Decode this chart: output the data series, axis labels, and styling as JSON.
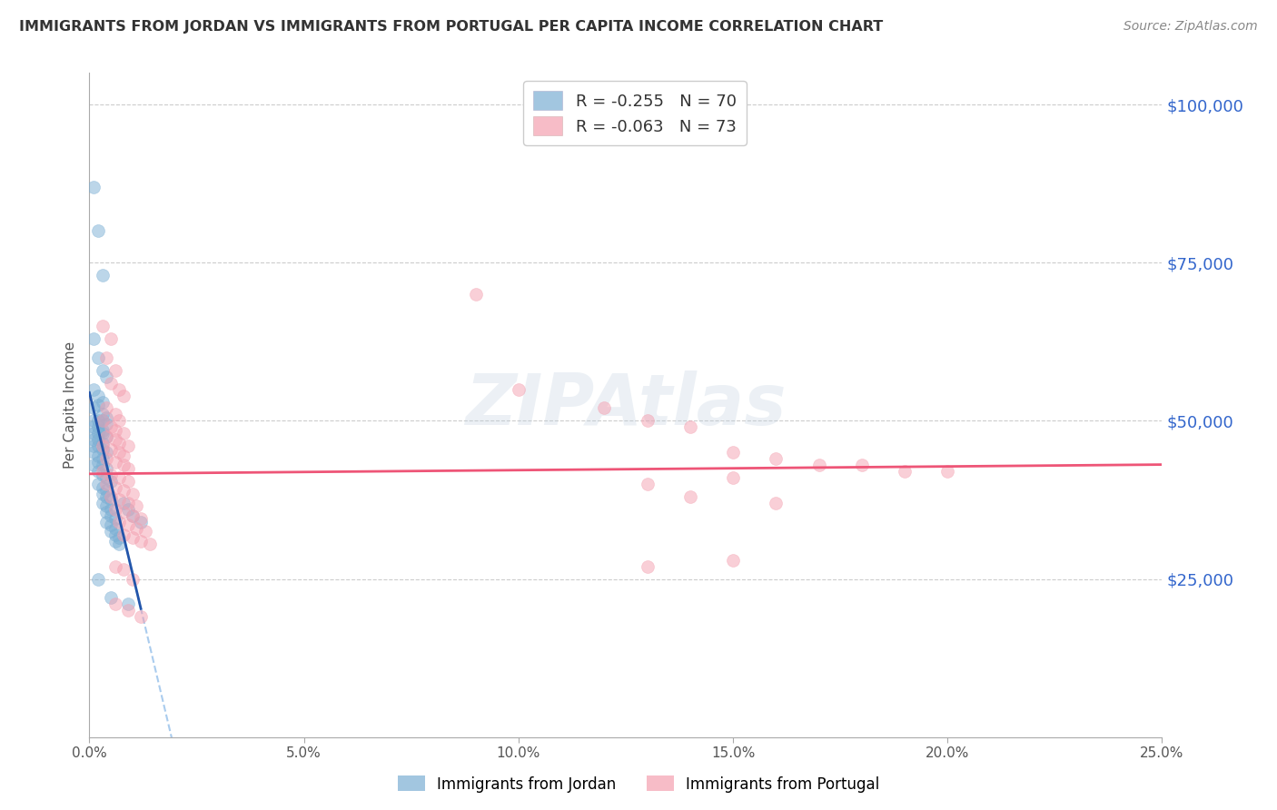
{
  "title": "IMMIGRANTS FROM JORDAN VS IMMIGRANTS FROM PORTUGAL PER CAPITA INCOME CORRELATION CHART",
  "source": "Source: ZipAtlas.com",
  "ylabel": "Per Capita Income",
  "x_min": 0.0,
  "x_max": 0.25,
  "y_min": 0,
  "y_max": 105000,
  "y_ticks": [
    25000,
    50000,
    75000,
    100000
  ],
  "y_tick_labels": [
    "$25,000",
    "$50,000",
    "$75,000",
    "$100,000"
  ],
  "x_ticks": [
    0.0,
    0.05,
    0.1,
    0.15,
    0.2,
    0.25
  ],
  "x_tick_labels": [
    "0.0%",
    "5.0%",
    "10.0%",
    "15.0%",
    "20.0%",
    "25.0%"
  ],
  "legend_jordan": "R = -0.255   N = 70",
  "legend_portugal": "R = -0.063   N = 73",
  "jordan_color": "#7BAFD4",
  "portugal_color": "#F4A0B0",
  "jordan_line_color": "#2255AA",
  "portugal_line_color": "#EE5577",
  "jordan_dashed_color": "#AACCEE",
  "background_color": "#FFFFFF",
  "jordan_points": [
    [
      0.001,
      87000
    ],
    [
      0.002,
      80000
    ],
    [
      0.003,
      73000
    ],
    [
      0.001,
      63000
    ],
    [
      0.002,
      60000
    ],
    [
      0.003,
      58000
    ],
    [
      0.004,
      57000
    ],
    [
      0.001,
      55000
    ],
    [
      0.002,
      54000
    ],
    [
      0.003,
      53000
    ],
    [
      0.001,
      52000
    ],
    [
      0.002,
      52500
    ],
    [
      0.003,
      51000
    ],
    [
      0.004,
      50500
    ],
    [
      0.001,
      50000
    ],
    [
      0.002,
      50000
    ],
    [
      0.003,
      50000
    ],
    [
      0.004,
      49500
    ],
    [
      0.001,
      49000
    ],
    [
      0.002,
      49000
    ],
    [
      0.003,
      48500
    ],
    [
      0.001,
      48000
    ],
    [
      0.002,
      48000
    ],
    [
      0.003,
      48000
    ],
    [
      0.004,
      47500
    ],
    [
      0.001,
      47000
    ],
    [
      0.002,
      47000
    ],
    [
      0.003,
      46500
    ],
    [
      0.001,
      46000
    ],
    [
      0.002,
      46000
    ],
    [
      0.003,
      45500
    ],
    [
      0.004,
      45000
    ],
    [
      0.001,
      45000
    ],
    [
      0.002,
      44500
    ],
    [
      0.003,
      44000
    ],
    [
      0.001,
      43000
    ],
    [
      0.002,
      43500
    ],
    [
      0.003,
      43000
    ],
    [
      0.004,
      42500
    ],
    [
      0.002,
      42000
    ],
    [
      0.003,
      41500
    ],
    [
      0.004,
      41000
    ],
    [
      0.005,
      40500
    ],
    [
      0.002,
      40000
    ],
    [
      0.003,
      39500
    ],
    [
      0.004,
      39000
    ],
    [
      0.003,
      38500
    ],
    [
      0.004,
      38000
    ],
    [
      0.005,
      37500
    ],
    [
      0.003,
      37000
    ],
    [
      0.004,
      36500
    ],
    [
      0.005,
      36000
    ],
    [
      0.004,
      35500
    ],
    [
      0.005,
      35000
    ],
    [
      0.006,
      34500
    ],
    [
      0.004,
      34000
    ],
    [
      0.005,
      33500
    ],
    [
      0.006,
      33000
    ],
    [
      0.005,
      32500
    ],
    [
      0.006,
      32000
    ],
    [
      0.007,
      31500
    ],
    [
      0.006,
      31000
    ],
    [
      0.007,
      30500
    ],
    [
      0.002,
      25000
    ],
    [
      0.005,
      22000
    ],
    [
      0.009,
      21000
    ],
    [
      0.008,
      37000
    ],
    [
      0.009,
      36000
    ],
    [
      0.01,
      35000
    ],
    [
      0.012,
      34000
    ]
  ],
  "portugal_points": [
    [
      0.003,
      65000
    ],
    [
      0.005,
      63000
    ],
    [
      0.004,
      60000
    ],
    [
      0.006,
      58000
    ],
    [
      0.005,
      56000
    ],
    [
      0.007,
      55000
    ],
    [
      0.008,
      54000
    ],
    [
      0.004,
      52000
    ],
    [
      0.006,
      51000
    ],
    [
      0.007,
      50000
    ],
    [
      0.003,
      50000
    ],
    [
      0.005,
      49000
    ],
    [
      0.006,
      48500
    ],
    [
      0.008,
      48000
    ],
    [
      0.004,
      47500
    ],
    [
      0.006,
      47000
    ],
    [
      0.007,
      46500
    ],
    [
      0.009,
      46000
    ],
    [
      0.003,
      46000
    ],
    [
      0.005,
      45500
    ],
    [
      0.007,
      45000
    ],
    [
      0.008,
      44500
    ],
    [
      0.004,
      44000
    ],
    [
      0.006,
      43500
    ],
    [
      0.008,
      43000
    ],
    [
      0.009,
      42500
    ],
    [
      0.003,
      42000
    ],
    [
      0.005,
      41500
    ],
    [
      0.007,
      41000
    ],
    [
      0.009,
      40500
    ],
    [
      0.004,
      40000
    ],
    [
      0.006,
      39500
    ],
    [
      0.008,
      39000
    ],
    [
      0.01,
      38500
    ],
    [
      0.005,
      38000
    ],
    [
      0.007,
      37500
    ],
    [
      0.009,
      37000
    ],
    [
      0.011,
      36500
    ],
    [
      0.006,
      36000
    ],
    [
      0.008,
      35500
    ],
    [
      0.01,
      35000
    ],
    [
      0.012,
      34500
    ],
    [
      0.007,
      34000
    ],
    [
      0.009,
      33500
    ],
    [
      0.011,
      33000
    ],
    [
      0.013,
      32500
    ],
    [
      0.008,
      32000
    ],
    [
      0.01,
      31500
    ],
    [
      0.012,
      31000
    ],
    [
      0.014,
      30500
    ],
    [
      0.006,
      27000
    ],
    [
      0.008,
      26500
    ],
    [
      0.01,
      25000
    ],
    [
      0.006,
      21000
    ],
    [
      0.009,
      20000
    ],
    [
      0.012,
      19000
    ],
    [
      0.09,
      70000
    ],
    [
      0.1,
      55000
    ],
    [
      0.12,
      52000
    ],
    [
      0.13,
      50000
    ],
    [
      0.14,
      49000
    ],
    [
      0.15,
      45000
    ],
    [
      0.16,
      44000
    ],
    [
      0.17,
      43000
    ],
    [
      0.18,
      43000
    ],
    [
      0.19,
      42000
    ],
    [
      0.2,
      42000
    ],
    [
      0.13,
      40000
    ],
    [
      0.15,
      41000
    ],
    [
      0.14,
      38000
    ],
    [
      0.16,
      37000
    ],
    [
      0.13,
      27000
    ],
    [
      0.15,
      28000
    ]
  ]
}
